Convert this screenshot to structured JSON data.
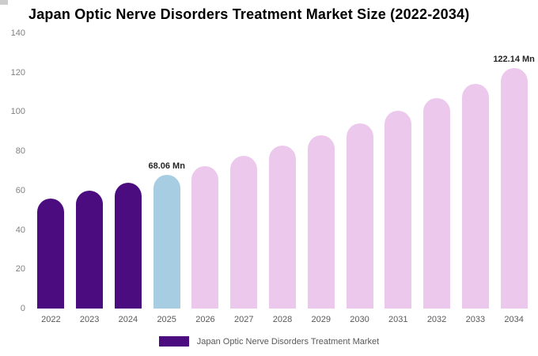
{
  "title": "Japan Optic Nerve Disorders Treatment Market Size (2022-2034)",
  "legend": {
    "label": "Japan Optic Nerve Disorders Treatment Market",
    "color": "#4b0c7f"
  },
  "chart_data": {
    "type": "bar",
    "title": "Japan Optic Nerve Disorders Treatment Market Size (2022-2034)",
    "unit": "Mn",
    "categories": [
      "2022",
      "2023",
      "2024",
      "2025",
      "2026",
      "2027",
      "2028",
      "2029",
      "2030",
      "2031",
      "2032",
      "2033",
      "2034"
    ],
    "values": [
      56,
      59.8,
      63.8,
      68.06,
      72.6,
      77.5,
      82.7,
      88.2,
      94.1,
      100.4,
      107.2,
      114.4,
      122.14
    ],
    "ylim": [
      0,
      140
    ],
    "yticks": [
      0,
      20,
      40,
      60,
      80,
      100,
      120,
      140
    ],
    "grid": false,
    "legend_position": "bottom",
    "palette": {
      "historical": "#4b0c7f",
      "highlight": "#a6cde2",
      "forecast": "#ecc8ec"
    },
    "bar_color_keys": [
      "historical",
      "historical",
      "historical",
      "highlight",
      "forecast",
      "forecast",
      "forecast",
      "forecast",
      "forecast",
      "forecast",
      "forecast",
      "forecast",
      "forecast"
    ],
    "annotations": [
      {
        "category": "2025",
        "text": "68.06 Mn"
      },
      {
        "category": "2034",
        "text": "122.14 Mn"
      }
    ]
  }
}
